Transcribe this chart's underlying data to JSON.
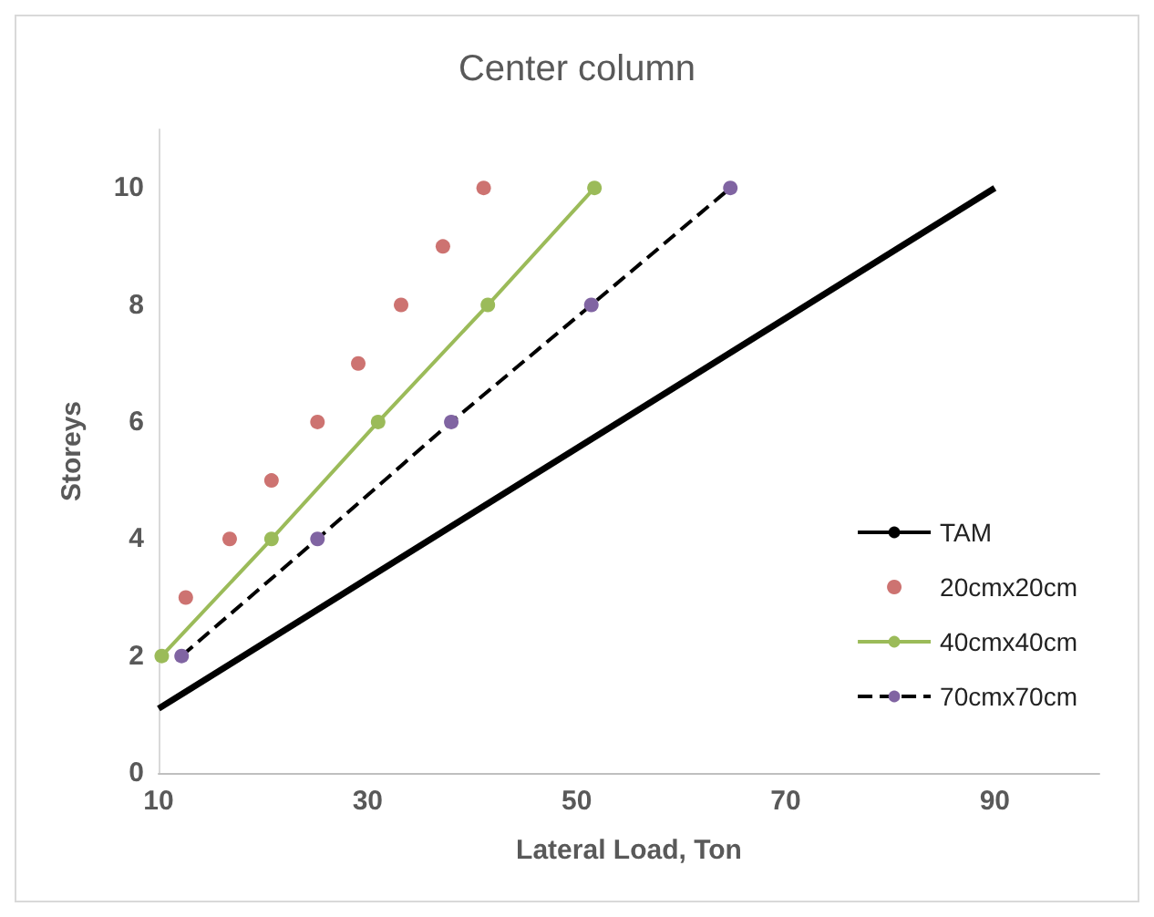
{
  "chart_data": {
    "type": "line",
    "title": "Center column",
    "xlabel": "Lateral Load, Ton",
    "ylabel": "Storeys",
    "xlim": [
      10,
      100
    ],
    "xticks": [
      10,
      30,
      50,
      70,
      90
    ],
    "ylim": [
      0,
      11
    ],
    "yticks": [
      0,
      2,
      4,
      6,
      8,
      10
    ],
    "grid": false,
    "legend": "bottom right",
    "series": [
      {
        "name": "TAM",
        "color": "#000000",
        "marker": "none",
        "line_style": "solid",
        "x": [
          10,
          90
        ],
        "values": [
          1.1,
          10
        ]
      },
      {
        "name": "20cmx20cm",
        "color": "#c0504d",
        "type": "scatter",
        "marker": "circle",
        "x": [
          12.6,
          16.8,
          20.8,
          25.2,
          29.1,
          33.2,
          37.2,
          41.1
        ],
        "values": [
          3,
          4,
          5,
          6,
          7,
          8,
          9,
          10
        ]
      },
      {
        "name": "40cmx40cm",
        "color": "#9bbb59",
        "marker": "circle",
        "line_style": "solid",
        "x": [
          10.3,
          20.8,
          31,
          41.5,
          51.7
        ],
        "values": [
          2,
          4,
          6,
          8,
          10
        ]
      },
      {
        "name": "70cmx70cm",
        "color": "#8064a2",
        "marker": "circle",
        "line_style": "dashed",
        "x": [
          12.2,
          25.2,
          38,
          51.4,
          64.7
        ],
        "values": [
          2,
          4,
          6,
          8,
          10
        ]
      }
    ]
  }
}
